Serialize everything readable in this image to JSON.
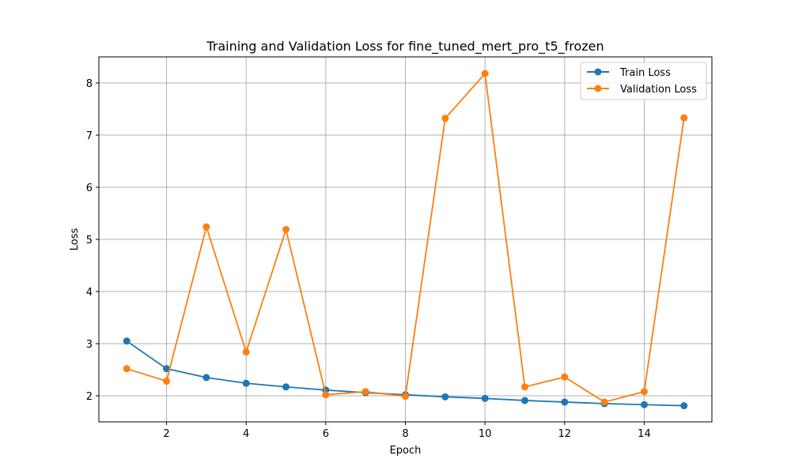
{
  "chart_data": {
    "type": "line",
    "title": "Training and Validation Loss for fine_tuned_mert_pro_t5_frozen",
    "xlabel": "Epoch",
    "ylabel": "Loss",
    "x": [
      1,
      2,
      3,
      4,
      5,
      6,
      7,
      8,
      9,
      10,
      11,
      12,
      13,
      14,
      15
    ],
    "xlim": [
      0.3,
      15.7
    ],
    "ylim": [
      1.5,
      8.5
    ],
    "xticks": [
      2,
      4,
      6,
      8,
      10,
      12,
      14
    ],
    "yticks": [
      2,
      3,
      4,
      5,
      6,
      7,
      8
    ],
    "grid": true,
    "legend_position": "top-right",
    "series": [
      {
        "name": "Train Loss",
        "color": "#1f77b4",
        "marker": "circle",
        "values": [
          3.05,
          2.52,
          2.35,
          2.24,
          2.17,
          2.11,
          2.06,
          2.02,
          1.98,
          1.95,
          1.91,
          1.88,
          1.85,
          1.83,
          1.81
        ]
      },
      {
        "name": "Validation Loss",
        "color": "#ff7f0e",
        "marker": "circle",
        "values": [
          2.52,
          2.28,
          5.24,
          2.84,
          5.19,
          2.02,
          2.08,
          1.99,
          7.32,
          8.18,
          2.17,
          2.36,
          1.88,
          2.08,
          7.33
        ]
      }
    ]
  }
}
